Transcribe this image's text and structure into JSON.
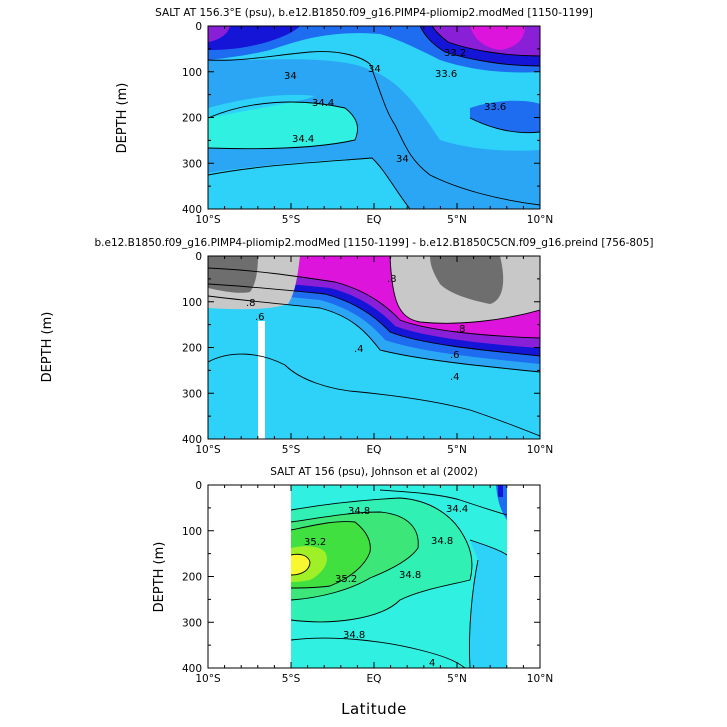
{
  "chart_data": [
    {
      "type": "contour",
      "title": "SALT AT 156.3°E (psu), b.e12.B1850.f09_g16.PIMP4-pliomip2.modMed [1150-1199]",
      "xlabel": "",
      "ylabel": "DEPTH (m)",
      "x_ticks": [
        "10°S",
        "5°S",
        "EQ",
        "5°N",
        "10°N"
      ],
      "y_ticks": [
        "0",
        "100",
        "200",
        "300",
        "400"
      ],
      "xlim": [
        -10,
        10
      ],
      "ylim": [
        400,
        0
      ],
      "y_inverted": true,
      "contour_labels": [
        "34",
        "34.4",
        "34.4",
        "34",
        "34",
        "33.6",
        "33.6",
        "33.2"
      ],
      "colors": {
        "deep_blue": "#1515d8",
        "blue": "#1e6cf0",
        "mid_blue": "#2aa6f4",
        "light_blue": "#2ed2f8",
        "cyan": "#30f0e2",
        "violet": "#8a1fd8",
        "magenta": "#dc14dc"
      }
    },
    {
      "type": "contour",
      "title": "b.e12.B1850.f09_g16.PIMP4-pliomip2.modMed [1150-1199] - b.e12.B1850C5CN.f09_g16.preind [756-805]",
      "xlabel": "",
      "ylabel": "DEPTH (m)",
      "x_ticks": [
        "10°S",
        "5°S",
        "EQ",
        "5°N",
        "10°N"
      ],
      "y_ticks": [
        "0",
        "100",
        "200",
        "300",
        "400"
      ],
      "xlim": [
        -10,
        10
      ],
      "ylim": [
        400,
        0
      ],
      "y_inverted": true,
      "contour_labels": [
        ".8",
        ".8",
        ".8",
        ".6",
        ".6",
        ".4",
        ".4"
      ],
      "colors": {
        "dark_gray": "#6e6e6e",
        "light_gray": "#c8c8c8",
        "magenta": "#dc14dc",
        "violet": "#8a1fd8",
        "deep_blue": "#1515d8",
        "blue": "#1e6cf0",
        "mid_blue": "#2aa6f4",
        "light_blue": "#2ed2f8"
      }
    },
    {
      "type": "contour",
      "title": "SALT AT 156 (psu), Johnson et al (2002)",
      "xlabel": "Latitude",
      "ylabel": "DEPTH (m)",
      "x_ticks": [
        "10°S",
        "5°S",
        "EQ",
        "5°N",
        "10°N"
      ],
      "y_ticks": [
        "0",
        "100",
        "200",
        "300",
        "400"
      ],
      "xlim": [
        -10,
        10
      ],
      "ylim": [
        400,
        0
      ],
      "y_inverted": true,
      "data_extent_lat": [
        -5,
        8
      ],
      "contour_labels": [
        "34.4",
        "34.8",
        "34.8",
        "35.2",
        "35.2",
        "34.8",
        "34.8",
        "4"
      ],
      "colors": {
        "cyan": "#30f0e2",
        "aqua_green": "#30f0b4",
        "light_green": "#3ce678",
        "green": "#40e040",
        "yellow_green": "#a0f028",
        "yellow": "#f8f830",
        "light_blue": "#2ed2f8"
      }
    }
  ]
}
